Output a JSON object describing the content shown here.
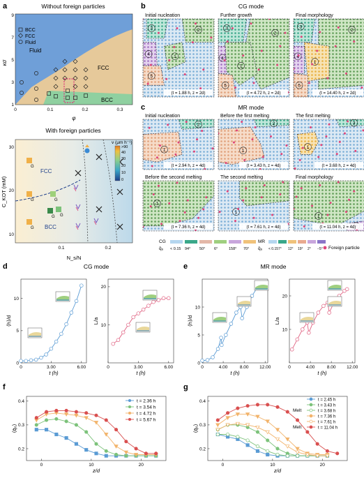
{
  "panel_a": {
    "letter": "a",
    "top_title": "Without foreign particles",
    "legend": [
      "BCC",
      "FCC",
      "Fluid"
    ],
    "regions": {
      "fluid": "Fluid",
      "fcc": "FCC",
      "bcc": "BCC"
    },
    "ylabel": "κσ",
    "xlabel": "φ",
    "yticks": [
      "1",
      "3",
      "5",
      "7",
      "9"
    ],
    "xticks": [
      "0",
      "0.1",
      "0.2",
      "0.3"
    ],
    "bottom_title": "With foreign particles",
    "ylabel2": "C_KOT (mM)",
    "xlabel2": "N_s/N",
    "yticks2": [
      "10",
      "20",
      "30"
    ],
    "xticks2": [
      "0.1",
      "0.2"
    ],
    "fcc_label": "FCC",
    "bcc_label": "BCC",
    "g_label": "G",
    "colorbar_title": "v (μm h⁻¹)",
    "colorbar_ticks": [
      ">90",
      "40",
      "30",
      "20",
      "10",
      "0"
    ],
    "colors": {
      "fluid": "#6f9fd8",
      "fcc": "#e6c99a",
      "bcc": "#8fd0a0",
      "highlight": "#e0357a"
    }
  },
  "panel_b": {
    "letter": "b",
    "title": "CG mode",
    "frames": [
      {
        "title": "Initial nucleation",
        "caption": "(t = 1.88 h, z = 2d)"
      },
      {
        "title": "Further growth",
        "caption": "(t = 4.72 h, z = 2d)"
      },
      {
        "title": "Final morphology",
        "caption": "(t = 14.40 h, z = 2d)"
      }
    ]
  },
  "panel_c": {
    "letter": "c",
    "title": "MR mode",
    "frames": [
      {
        "title": "Initial nucleation",
        "caption": "(t = 2.94 h, z = 4d)"
      },
      {
        "title": "Before the first melting",
        "caption": "(t = 3.43 h, z = 4d)"
      },
      {
        "title": "The first melting",
        "caption": "(t = 3.68 h, z = 4d)"
      },
      {
        "title": "Before the second melting",
        "caption": "(t = 7.36 h, z = 4d)"
      },
      {
        "title": "The second melting",
        "caption": "(t = 7.61 h, z = 4d)"
      },
      {
        "title": "Final morphology",
        "caption": "(t = 11.04 h, z = 4d)"
      }
    ]
  },
  "legend_strip": {
    "cg_label": "CG",
    "q_label": "q̄₆",
    "cg_items": [
      "< 0.15",
      "94°",
      "50°",
      "6°",
      "158°",
      "70°"
    ],
    "mr_label": "MR",
    "mr_items": [
      "< 0.15",
      "7°",
      "12°",
      "19°",
      "2°",
      "−5°"
    ],
    "foreign": "Foreign particle"
  },
  "panel_d": {
    "letter": "d",
    "title": "CG mode",
    "left": {
      "ylabel": "⟨h⟩/d",
      "xlabel": "t (h)",
      "xticks": [
        "0",
        "3.00",
        "6.00"
      ],
      "yticks": [
        "0",
        "5",
        "10"
      ]
    },
    "right": {
      "ylabel": "L/a",
      "xlabel": "t (h)",
      "xticks": [
        "0",
        "3.00",
        "6.00"
      ],
      "yticks": [
        "10",
        "20"
      ]
    }
  },
  "panel_e": {
    "letter": "e",
    "title": "MR mode",
    "left": {
      "ylabel": "⟨h⟩/d",
      "xlabel": "t (h)",
      "xticks": [
        "0",
        "4.00",
        "8.00",
        "12.00"
      ],
      "yticks": [
        "0",
        "5",
        "10"
      ]
    },
    "right": {
      "ylabel": "L/a",
      "xlabel": "t (h)",
      "xticks": [
        "0",
        "4.00",
        "8.00",
        "12.00"
      ],
      "yticks": [
        "10",
        "20"
      ]
    }
  },
  "panel_f": {
    "letter": "f",
    "ylabel": "⟨q̄₆⟩",
    "xlabel": "z/d",
    "xticks": [
      "0",
      "10",
      "20"
    ],
    "yticks": [
      "0.2",
      "0.3",
      "0.4"
    ],
    "legend": [
      "t = 2.36 h",
      "t = 3.54 h",
      "t = 4.72 h",
      "t = 5.67 h"
    ]
  },
  "panel_g": {
    "letter": "g",
    "ylabel": "⟨q̄₆⟩",
    "xlabel": "z/d",
    "xticks": [
      "0",
      "10",
      "20"
    ],
    "yticks": [
      "0.2",
      "0.3",
      "0.4"
    ],
    "melt": "Melt",
    "legend": [
      "t = 2.45 h",
      "t = 3.43 h",
      "t = 3.68 h",
      "t = 7.36 h",
      "t = 7.61 h",
      "t = 11.04 h"
    ]
  },
  "chart_data": [
    {
      "type": "line",
      "id": "d-left",
      "xlabel": "t (h)",
      "ylabel": "⟨h⟩/d",
      "xlim": [
        0,
        6.5
      ],
      "ylim": [
        0,
        13
      ],
      "series": [
        {
          "values": [
            [
              0,
              0.3
            ],
            [
              0.5,
              0.3
            ],
            [
              1,
              0.4
            ],
            [
              1.5,
              0.5
            ],
            [
              2,
              0.8
            ],
            [
              2.5,
              1.3
            ],
            [
              3,
              2.2
            ],
            [
              3.5,
              3.3
            ],
            [
              4,
              4.5
            ],
            [
              4.5,
              6
            ],
            [
              5,
              7.8
            ],
            [
              5.5,
              9.6
            ],
            [
              6,
              12
            ]
          ],
          "color": "#5a9bd4"
        }
      ]
    },
    {
      "type": "line",
      "id": "d-right",
      "xlabel": "t (h)",
      "ylabel": "L/a",
      "xlim": [
        0,
        6.5
      ],
      "ylim": [
        0,
        22
      ],
      "series": [
        {
          "values": [
            [
              0.5,
              5
            ],
            [
              1,
              6
            ],
            [
              1.5,
              8
            ],
            [
              2,
              10
            ],
            [
              2.5,
              12
            ],
            [
              3,
              13
            ],
            [
              3.5,
              14
            ],
            [
              4,
              15
            ],
            [
              4.5,
              16
            ],
            [
              5,
              16.5
            ],
            [
              5.5,
              17
            ],
            [
              6,
              17
            ]
          ],
          "color": "#e06080"
        }
      ]
    },
    {
      "type": "line",
      "id": "e-left",
      "xlabel": "t (h)",
      "ylabel": "⟨h⟩/d",
      "xlim": [
        0,
        12.5
      ],
      "ylim": [
        0,
        15
      ],
      "series": [
        {
          "values": [
            [
              0,
              0.4
            ],
            [
              1,
              0.5
            ],
            [
              2,
              1
            ],
            [
              3,
              2.5
            ],
            [
              3.6,
              4.5
            ],
            [
              3.7,
              3.2
            ],
            [
              4.5,
              5
            ],
            [
              5.5,
              7
            ],
            [
              6.5,
              9
            ],
            [
              7.3,
              10
            ],
            [
              7.6,
              8
            ],
            [
              8.5,
              10
            ],
            [
              9.5,
              12
            ],
            [
              10.5,
              13.5
            ],
            [
              11,
              14
            ]
          ],
          "color": "#5a9bd4"
        }
      ]
    },
    {
      "type": "line",
      "id": "e-right",
      "xlabel": "t (h)",
      "ylabel": "L/a",
      "xlim": [
        0,
        12.5
      ],
      "ylim": [
        0,
        25
      ],
      "series": [
        {
          "values": [
            [
              0.5,
              4
            ],
            [
              1.5,
              7
            ],
            [
              2.5,
              10
            ],
            [
              3.4,
              12
            ],
            [
              3.7,
              9
            ],
            [
              4.5,
              12
            ],
            [
              5.5,
              15
            ],
            [
              6.5,
              17
            ],
            [
              7.3,
              18
            ],
            [
              7.6,
              15
            ],
            [
              8.5,
              18
            ],
            [
              9.5,
              20
            ],
            [
              10.5,
              21.5
            ],
            [
              11,
              22
            ]
          ],
          "color": "#e06080"
        }
      ]
    },
    {
      "type": "line",
      "id": "f",
      "xlabel": "z/d",
      "ylabel": "⟨q̄₆⟩",
      "xlim": [
        -3,
        25
      ],
      "ylim": [
        0.15,
        0.42
      ],
      "series": [
        {
          "name": "t = 2.36 h",
          "color": "#5a9bd4",
          "values": [
            [
              -1,
              0.28
            ],
            [
              1,
              0.28
            ],
            [
              3,
              0.26
            ],
            [
              5,
              0.245
            ],
            [
              7,
              0.22
            ],
            [
              9,
              0.195
            ],
            [
              11,
              0.18
            ],
            [
              13,
              0.17
            ],
            [
              15,
              0.17
            ],
            [
              17,
              0.17
            ],
            [
              19,
              0.17
            ],
            [
              21,
              0.17
            ],
            [
              23,
              0.17
            ]
          ]
        },
        {
          "name": "t = 3.54 h",
          "color": "#7cc27a",
          "values": [
            [
              -1,
              0.3
            ],
            [
              1,
              0.32
            ],
            [
              3,
              0.325
            ],
            [
              5,
              0.315
            ],
            [
              7,
              0.3
            ],
            [
              9,
              0.27
            ],
            [
              11,
              0.22
            ],
            [
              13,
              0.19
            ],
            [
              15,
              0.175
            ],
            [
              17,
              0.17
            ],
            [
              19,
              0.17
            ],
            [
              21,
              0.17
            ],
            [
              23,
              0.17
            ]
          ]
        },
        {
          "name": "t = 4.72 h",
          "color": "#f2b36a",
          "values": [
            [
              -1,
              0.32
            ],
            [
              1,
              0.345
            ],
            [
              3,
              0.35
            ],
            [
              5,
              0.345
            ],
            [
              7,
              0.34
            ],
            [
              9,
              0.33
            ],
            [
              11,
              0.31
            ],
            [
              13,
              0.26
            ],
            [
              15,
              0.21
            ],
            [
              17,
              0.185
            ],
            [
              19,
              0.175
            ],
            [
              21,
              0.175
            ],
            [
              23,
              0.175
            ]
          ]
        },
        {
          "name": "t = 5.67 h",
          "color": "#d94f4f",
          "values": [
            [
              -1,
              0.33
            ],
            [
              1,
              0.355
            ],
            [
              3,
              0.36
            ],
            [
              5,
              0.36
            ],
            [
              7,
              0.355
            ],
            [
              9,
              0.35
            ],
            [
              11,
              0.34
            ],
            [
              13,
              0.32
            ],
            [
              15,
              0.28
            ],
            [
              17,
              0.23
            ],
            [
              19,
              0.2
            ],
            [
              21,
              0.18
            ],
            [
              23,
              0.18
            ]
          ]
        }
      ]
    },
    {
      "type": "line",
      "id": "g",
      "xlabel": "z/d",
      "ylabel": "⟨q̄₆⟩",
      "xlim": [
        -3,
        25
      ],
      "ylim": [
        0.15,
        0.42
      ],
      "series": [
        {
          "name": "t = 2.45 h",
          "color": "#5a9bd4",
          "values": [
            [
              -1,
              0.26
            ],
            [
              1,
              0.25
            ],
            [
              3,
              0.24
            ],
            [
              5,
              0.215
            ],
            [
              7,
              0.19
            ],
            [
              9,
              0.175
            ],
            [
              11,
              0.17
            ],
            [
              13,
              0.17
            ],
            [
              15,
              0.17
            ],
            [
              17,
              0.17
            ],
            [
              19,
              0.17
            ],
            [
              21,
              0.17
            ]
          ]
        },
        {
          "name": "t = 3.43 h",
          "color": "#7cc27a",
          "values": [
            [
              -1,
              0.28
            ],
            [
              1,
              0.3
            ],
            [
              3,
              0.3
            ],
            [
              5,
              0.29
            ],
            [
              7,
              0.27
            ],
            [
              9,
              0.235
            ],
            [
              11,
              0.2
            ],
            [
              13,
              0.18
            ],
            [
              15,
              0.17
            ],
            [
              17,
              0.17
            ],
            [
              19,
              0.17
            ],
            [
              21,
              0.17
            ]
          ]
        },
        {
          "name": "t = 3.68 h",
          "color": "#7cc27a",
          "hollow": true,
          "values": [
            [
              -1,
              0.26
            ],
            [
              1,
              0.26
            ],
            [
              3,
              0.25
            ],
            [
              5,
              0.235
            ],
            [
              7,
              0.21
            ],
            [
              9,
              0.19
            ],
            [
              11,
              0.175
            ],
            [
              13,
              0.17
            ],
            [
              15,
              0.17
            ],
            [
              17,
              0.17
            ],
            [
              19,
              0.17
            ],
            [
              21,
              0.17
            ]
          ]
        },
        {
          "name": "t = 7.36 h",
          "color": "#f2b36a",
          "values": [
            [
              -1,
              0.3
            ],
            [
              1,
              0.33
            ],
            [
              3,
              0.345
            ],
            [
              5,
              0.345
            ],
            [
              7,
              0.335
            ],
            [
              9,
              0.315
            ],
            [
              11,
              0.28
            ],
            [
              13,
              0.24
            ],
            [
              15,
              0.2
            ],
            [
              17,
              0.18
            ],
            [
              19,
              0.175
            ],
            [
              21,
              0.175
            ]
          ]
        },
        {
          "name": "t = 7.61 h",
          "color": "#f2b36a",
          "hollow": true,
          "values": [
            [
              -1,
              0.28
            ],
            [
              1,
              0.3
            ],
            [
              3,
              0.305
            ],
            [
              5,
              0.3
            ],
            [
              7,
              0.29
            ],
            [
              9,
              0.27
            ],
            [
              11,
              0.24
            ],
            [
              13,
              0.21
            ],
            [
              15,
              0.185
            ],
            [
              17,
              0.175
            ],
            [
              19,
              0.17
            ],
            [
              21,
              0.17
            ]
          ]
        },
        {
          "name": "t = 11.04 h",
          "color": "#d94f4f",
          "values": [
            [
              -1,
              0.32
            ],
            [
              1,
              0.35
            ],
            [
              3,
              0.37
            ],
            [
              5,
              0.38
            ],
            [
              7,
              0.385
            ],
            [
              9,
              0.385
            ],
            [
              11,
              0.375
            ],
            [
              13,
              0.355
            ],
            [
              15,
              0.32
            ],
            [
              17,
              0.27
            ],
            [
              19,
              0.22
            ],
            [
              21,
              0.19
            ],
            [
              23,
              0.18
            ]
          ]
        }
      ]
    }
  ]
}
